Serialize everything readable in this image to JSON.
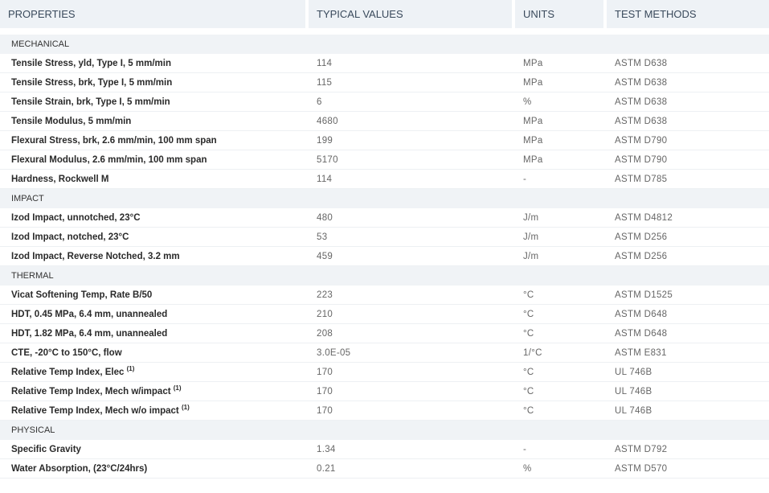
{
  "headers": {
    "property": "PROPERTIES",
    "value": "TYPICAL VALUES",
    "units": "UNITS",
    "method": "TEST METHODS"
  },
  "sections": [
    {
      "title": "MECHANICAL",
      "rows": [
        {
          "property": "Tensile Stress, yld, Type I, 5 mm/min",
          "value": "114",
          "units": "MPa",
          "method": "ASTM D638"
        },
        {
          "property": "Tensile Stress, brk, Type I, 5 mm/min",
          "value": "115",
          "units": "MPa",
          "method": "ASTM D638"
        },
        {
          "property": "Tensile Strain, brk, Type I, 5 mm/min",
          "value": "6",
          "units": "%",
          "method": "ASTM D638"
        },
        {
          "property": "Tensile Modulus, 5 mm/min",
          "value": "4680",
          "units": "MPa",
          "method": "ASTM D638"
        },
        {
          "property": "Flexural Stress, brk, 2.6 mm/min, 100 mm span",
          "value": "199",
          "units": "MPa",
          "method": "ASTM D790"
        },
        {
          "property": "Flexural Modulus, 2.6 mm/min, 100 mm span",
          "value": "5170",
          "units": "MPa",
          "method": "ASTM D790"
        },
        {
          "property": "Hardness, Rockwell M",
          "value": "114",
          "units": "-",
          "method": "ASTM D785"
        }
      ]
    },
    {
      "title": "IMPACT",
      "rows": [
        {
          "property": "Izod Impact, unnotched, 23°C",
          "value": "480",
          "units": "J/m",
          "method": "ASTM D4812"
        },
        {
          "property": "Izod Impact, notched, 23°C",
          "value": "53",
          "units": "J/m",
          "method": "ASTM D256"
        },
        {
          "property": "Izod Impact, Reverse Notched, 3.2 mm",
          "value": "459",
          "units": "J/m",
          "method": "ASTM D256"
        }
      ]
    },
    {
      "title": "THERMAL",
      "rows": [
        {
          "property": "Vicat Softening Temp, Rate B/50",
          "value": "223",
          "units": "°C",
          "method": "ASTM D1525"
        },
        {
          "property": "HDT, 0.45 MPa, 6.4 mm, unannealed",
          "value": "210",
          "units": "°C",
          "method": "ASTM D648"
        },
        {
          "property": "HDT, 1.82 MPa, 6.4 mm, unannealed",
          "value": "208",
          "units": "°C",
          "method": "ASTM D648"
        },
        {
          "property": "CTE, -20°C to 150°C, flow",
          "value": "3.0E-05",
          "units": "1/°C",
          "method": "ASTM E831"
        },
        {
          "property": "Relative Temp Index, Elec",
          "note": "(1)",
          "value": "170",
          "units": "°C",
          "method": "UL 746B"
        },
        {
          "property": "Relative Temp Index, Mech w/impact",
          "note": "(1)",
          "value": "170",
          "units": "°C",
          "method": "UL 746B"
        },
        {
          "property": "Relative Temp Index, Mech w/o impact",
          "note": "(1)",
          "value": "170",
          "units": "°C",
          "method": "UL 746B"
        }
      ]
    },
    {
      "title": "PHYSICAL",
      "rows": [
        {
          "property": "Specific Gravity",
          "value": "1.34",
          "units": "-",
          "method": "ASTM D792"
        },
        {
          "property": "Water Absorption, (23°C/24hrs)",
          "value": "0.21",
          "units": "%",
          "method": "ASTM D570"
        }
      ]
    }
  ]
}
